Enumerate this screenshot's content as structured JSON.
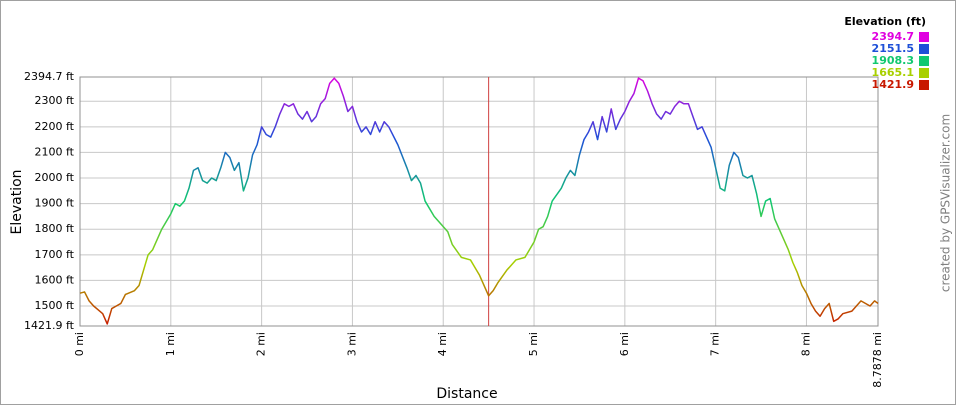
{
  "chart_data": {
    "type": "line",
    "x_label": "Distance",
    "y_label": "Elevation",
    "credit": "created by GPSVisualizer.com",
    "legend": {
      "title": "Elevation (ft)",
      "scale": [
        {
          "value": 2394.7,
          "color": "#e000e0"
        },
        {
          "value": 2151.5,
          "color": "#1e50d8"
        },
        {
          "value": 1908.3,
          "color": "#10c870"
        },
        {
          "value": 1665.1,
          "color": "#a8d000"
        },
        {
          "value": 1421.9,
          "color": "#c81800"
        }
      ]
    },
    "vline": {
      "value": 4.5,
      "color": "#d04040"
    },
    "xlim": [
      0,
      8.7878
    ],
    "xticks": [
      {
        "value": 0,
        "label": "0 mi"
      },
      {
        "value": 1,
        "label": "1 mi"
      },
      {
        "value": 2,
        "label": "2 mi"
      },
      {
        "value": 3,
        "label": "3 mi"
      },
      {
        "value": 4,
        "label": "4 mi"
      },
      {
        "value": 5,
        "label": "5 mi"
      },
      {
        "value": 6,
        "label": "6 mi"
      },
      {
        "value": 7,
        "label": "7 mi"
      },
      {
        "value": 8,
        "label": "8 mi"
      },
      {
        "value": 8.7878,
        "label": "8.7878 mi"
      }
    ],
    "ylim": [
      1421.9,
      2394.7
    ],
    "yticks": [
      {
        "value": 1421.9,
        "label": "1421.9 ft"
      },
      {
        "value": 1500,
        "label": "1500 ft"
      },
      {
        "value": 1600,
        "label": "1600 ft"
      },
      {
        "value": 1700,
        "label": "1700 ft"
      },
      {
        "value": 1800,
        "label": "1800 ft"
      },
      {
        "value": 1900,
        "label": "1900 ft"
      },
      {
        "value": 2000,
        "label": "2000 ft"
      },
      {
        "value": 2100,
        "label": "2100 ft"
      },
      {
        "value": 2200,
        "label": "2200 ft"
      },
      {
        "value": 2300,
        "label": "2300 ft"
      },
      {
        "value": 2394.7,
        "label": "2394.7 ft"
      }
    ],
    "grid": true,
    "x": [
      0,
      0.05,
      0.1,
      0.15,
      0.2,
      0.25,
      0.3,
      0.35,
      0.4,
      0.45,
      0.5,
      0.6,
      0.65,
      0.7,
      0.75,
      0.8,
      0.9,
      1.0,
      1.05,
      1.1,
      1.15,
      1.2,
      1.25,
      1.3,
      1.35,
      1.4,
      1.45,
      1.5,
      1.55,
      1.6,
      1.65,
      1.7,
      1.75,
      1.8,
      1.85,
      1.9,
      1.95,
      2.0,
      2.05,
      2.1,
      2.15,
      2.2,
      2.25,
      2.3,
      2.35,
      2.4,
      2.45,
      2.5,
      2.55,
      2.6,
      2.65,
      2.7,
      2.75,
      2.8,
      2.85,
      2.9,
      2.95,
      3.0,
      3.05,
      3.1,
      3.15,
      3.2,
      3.25,
      3.3,
      3.35,
      3.4,
      3.5,
      3.6,
      3.65,
      3.7,
      3.75,
      3.8,
      3.9,
      4.0,
      4.05,
      4.1,
      4.2,
      4.3,
      4.35,
      4.4,
      4.5,
      4.55,
      4.6,
      4.7,
      4.8,
      4.9,
      5.0,
      5.05,
      5.1,
      5.15,
      5.2,
      5.3,
      5.35,
      5.4,
      5.45,
      5.5,
      5.55,
      5.6,
      5.65,
      5.7,
      5.75,
      5.8,
      5.85,
      5.9,
      5.95,
      6.0,
      6.05,
      6.1,
      6.15,
      6.2,
      6.25,
      6.3,
      6.35,
      6.4,
      6.45,
      6.5,
      6.55,
      6.6,
      6.65,
      6.7,
      6.75,
      6.8,
      6.85,
      6.9,
      6.95,
      7.0,
      7.05,
      7.1,
      7.15,
      7.2,
      7.25,
      7.3,
      7.35,
      7.4,
      7.45,
      7.5,
      7.55,
      7.6,
      7.65,
      7.7,
      7.8,
      7.85,
      7.9,
      7.95,
      8.0,
      8.05,
      8.1,
      8.15,
      8.2,
      8.25,
      8.3,
      8.35,
      8.4,
      8.5,
      8.6,
      8.7,
      8.75,
      8.7878
    ],
    "values": [
      1550,
      1555,
      1520,
      1500,
      1485,
      1470,
      1430,
      1490,
      1500,
      1510,
      1545,
      1560,
      1580,
      1640,
      1700,
      1720,
      1800,
      1860,
      1900,
      1890,
      1910,
      1960,
      2030,
      2040,
      1990,
      1980,
      2000,
      1990,
      2040,
      2100,
      2080,
      2030,
      2060,
      1950,
      2000,
      2090,
      2130,
      2200,
      2170,
      2160,
      2200,
      2250,
      2290,
      2280,
      2290,
      2250,
      2230,
      2260,
      2220,
      2240,
      2290,
      2310,
      2370,
      2390,
      2370,
      2320,
      2260,
      2280,
      2220,
      2180,
      2200,
      2170,
      2220,
      2180,
      2220,
      2200,
      2130,
      2040,
      1990,
      2010,
      1980,
      1910,
      1850,
      1810,
      1790,
      1740,
      1690,
      1680,
      1650,
      1620,
      1540,
      1560,
      1590,
      1640,
      1680,
      1690,
      1750,
      1800,
      1810,
      1850,
      1910,
      1960,
      2000,
      2030,
      2010,
      2090,
      2150,
      2180,
      2220,
      2150,
      2240,
      2180,
      2270,
      2190,
      2230,
      2260,
      2300,
      2330,
      2390,
      2380,
      2340,
      2290,
      2250,
      2230,
      2260,
      2250,
      2280,
      2300,
      2290,
      2290,
      2240,
      2190,
      2200,
      2160,
      2120,
      2040,
      1960,
      1950,
      2050,
      2100,
      2080,
      2010,
      2000,
      2010,
      1940,
      1850,
      1910,
      1920,
      1840,
      1800,
      1720,
      1670,
      1630,
      1580,
      1550,
      1510,
      1480,
      1460,
      1490,
      1510,
      1440,
      1450,
      1470,
      1480,
      1520,
      1500,
      1520,
      1510
    ]
  }
}
